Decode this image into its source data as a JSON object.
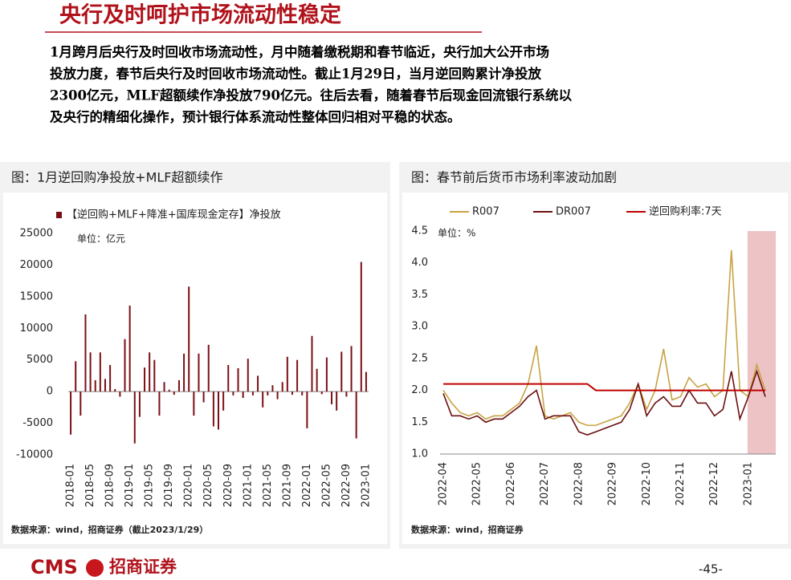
{
  "header": {
    "title": "央行及时呵护市场流动性稳定",
    "paragraph": [
      "1月跨月后央行及时回收市场流动性，月中随着缴税期和春节临近，央行加大公开市场",
      "投放力度，春节后央行及时回收市场流动性。截止1月29日，当月逆回购累计净投放",
      "2300亿元，MLF超额续作净投放790亿元。往后去看，随着春节后现金回流银行系统以",
      "及央行的精细化操作，预计银行体系流动性整体回归相对平稳的状态。"
    ]
  },
  "chart_data": [
    {
      "type": "bar",
      "title": "图：1月逆回购净投放+MLF超额续作",
      "unit": "单位：亿元",
      "source": "数据来源：wind，招商证券（截止2023/1/29）",
      "series": [
        {
          "name": "【逆回购+MLF+降准+国库现金定存】净投放",
          "color": "#7a1016",
          "values": [
            -6800,
            4800,
            -3800,
            12200,
            6200,
            1800,
            6200,
            2000,
            4200,
            400,
            -800,
            8300,
            13600,
            -8200,
            -4000,
            3800,
            6200,
            5000,
            -3800,
            1500,
            300,
            -500,
            1800,
            6000,
            16600,
            -3800,
            6000,
            -1700,
            7400,
            -5500,
            -6000,
            -3000,
            4200,
            -600,
            3700,
            -1000,
            5200,
            -600,
            2500,
            -2500,
            -600,
            1000,
            -1200,
            1500,
            5500,
            -500,
            5000,
            -600,
            -5800,
            8800,
            3600,
            -400,
            5400,
            -2000,
            -3000,
            6300,
            -800,
            7200,
            -7400,
            20500,
            3100
          ]
        }
      ],
      "categories": [
        "2018-01",
        null,
        null,
        null,
        "2018-05",
        null,
        null,
        null,
        "2018-09",
        null,
        null,
        null,
        "2019-01",
        null,
        null,
        null,
        "2019-05",
        null,
        null,
        null,
        "2019-09",
        null,
        null,
        null,
        "2020-01",
        null,
        null,
        null,
        "2020-05",
        null,
        null,
        null,
        "2020-09",
        null,
        null,
        null,
        "2021-01",
        null,
        null,
        null,
        "2021-05",
        null,
        null,
        null,
        "2021-09",
        null,
        null,
        null,
        "2022-01",
        null,
        null,
        null,
        "2022-05",
        null,
        null,
        null,
        "2022-09",
        null,
        null,
        null,
        "2023-01"
      ],
      "ylim": [
        -10000,
        25000
      ],
      "yticks": [
        -10000,
        -5000,
        0,
        5000,
        10000,
        15000,
        20000,
        25000
      ]
    },
    {
      "type": "line",
      "title": "图：春节前后货币市场利率波动加剧",
      "unit": "单位：%",
      "source": "数据来源：wind，招商证券",
      "highlight_from": "2023-01",
      "categories": [
        "2022-04",
        null,
        null,
        null,
        "2022-05",
        null,
        null,
        null,
        "2022-06",
        null,
        null,
        null,
        "2022-07",
        null,
        null,
        null,
        "2022-08",
        null,
        null,
        null,
        "2022-09",
        null,
        null,
        null,
        "2022-10",
        null,
        null,
        null,
        "2022-11",
        null,
        null,
        null,
        "2022-12",
        null,
        null,
        null,
        "2023-01",
        null,
        null
      ],
      "series": [
        {
          "name": "R007",
          "color": "#c9a243",
          "values": [
            2.0,
            1.8,
            1.65,
            1.6,
            1.65,
            1.55,
            1.6,
            1.6,
            1.7,
            1.8,
            2.1,
            2.7,
            1.6,
            1.55,
            1.6,
            1.65,
            1.5,
            1.45,
            1.45,
            1.5,
            1.55,
            1.6,
            1.8,
            2.1,
            1.7,
            2.0,
            2.65,
            1.85,
            1.9,
            2.2,
            2.05,
            2.1,
            1.9,
            2.0,
            4.2,
            2.0,
            1.9,
            2.4,
            2.0
          ]
        },
        {
          "name": "DR007",
          "color": "#6b0f0f",
          "values": [
            1.95,
            1.6,
            1.6,
            1.55,
            1.6,
            1.5,
            1.55,
            1.55,
            1.65,
            1.75,
            1.9,
            2.0,
            1.55,
            1.6,
            1.6,
            1.6,
            1.35,
            1.3,
            1.35,
            1.4,
            1.45,
            1.5,
            1.7,
            2.1,
            1.6,
            1.8,
            1.9,
            1.75,
            1.75,
            2.0,
            1.8,
            1.8,
            1.6,
            1.7,
            2.3,
            1.55,
            1.9,
            2.3,
            1.9
          ]
        },
        {
          "name": "逆回购利率:7天",
          "color": "#c00000",
          "values": [
            2.1,
            2.1,
            2.1,
            2.1,
            2.1,
            2.1,
            2.1,
            2.1,
            2.1,
            2.1,
            2.1,
            2.1,
            2.1,
            2.1,
            2.1,
            2.1,
            2.1,
            2.1,
            2.0,
            2.0,
            2.0,
            2.0,
            2.0,
            2.0,
            2.0,
            2.0,
            2.0,
            2.0,
            2.0,
            2.0,
            2.0,
            2.0,
            2.0,
            2.0,
            2.0,
            2.0,
            2.0,
            2.0,
            2.0
          ]
        }
      ],
      "ylim": [
        1,
        4.5
      ],
      "yticks": [
        {
          "value": 1,
          "label": "1.0"
        },
        1.5,
        {
          "value": 2,
          "label": "2.0"
        },
        2.5,
        {
          "value": 3,
          "label": "3.0"
        },
        3.5,
        {
          "value": 4,
          "label": "4.0"
        },
        4.5
      ]
    }
  ],
  "footer": {
    "brand": "CMS",
    "company": "招商证券",
    "page": "-45-"
  }
}
